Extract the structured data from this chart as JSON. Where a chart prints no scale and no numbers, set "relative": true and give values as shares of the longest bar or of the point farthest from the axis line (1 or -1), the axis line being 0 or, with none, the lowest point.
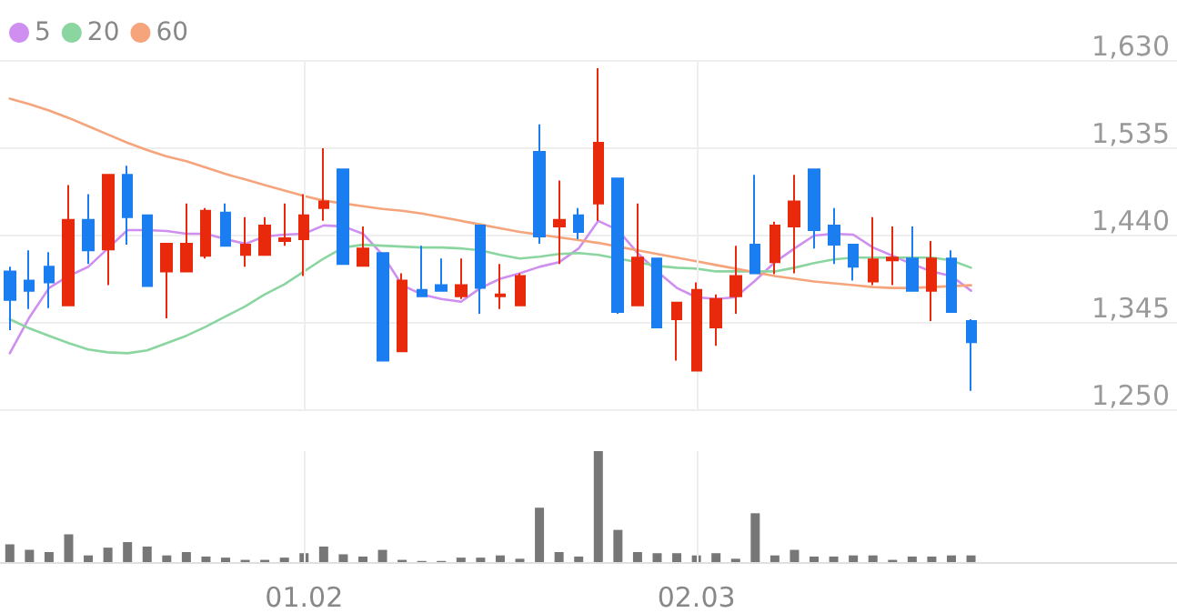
{
  "chart_data": [
    {
      "type": "candlestick",
      "categories": [
        null,
        null,
        null,
        null,
        null,
        null,
        null,
        null,
        null,
        null,
        null,
        null,
        null,
        null,
        null,
        "01.02",
        null,
        null,
        null,
        null,
        null,
        null,
        null,
        null,
        null,
        null,
        null,
        null,
        null,
        null,
        null,
        null,
        null,
        null,
        null,
        "02.03",
        null,
        null,
        null,
        null,
        null,
        null,
        null,
        null,
        null,
        null,
        null,
        null,
        null,
        null,
        null,
        null,
        null,
        null,
        null,
        null,
        null,
        null,
        null,
        null
      ],
      "ohlc": [
        [
          1400,
          1405,
          1336,
          1369
        ],
        [
          1390,
          1423,
          1359,
          1379
        ],
        [
          1405,
          1421,
          1360,
          1388
        ],
        [
          1363,
          1494,
          1363,
          1456
        ],
        [
          1456,
          1484,
          1408,
          1423
        ],
        [
          1424,
          1505,
          1385,
          1505
        ],
        [
          1505,
          1515,
          1429,
          1459
        ],
        [
          1461,
          1461,
          1384,
          1384
        ],
        [
          1400,
          1430,
          1349,
          1430
        ],
        [
          1400,
          1474,
          1400,
          1430
        ],
        [
          1417,
          1469,
          1414,
          1466
        ],
        [
          1464,
          1474,
          1428,
          1428
        ],
        [
          1418,
          1459,
          1405,
          1429
        ],
        [
          1418,
          1459,
          1418,
          1450
        ],
        [
          1433,
          1474,
          1428,
          1436
        ],
        [
          1435,
          1484,
          1395,
          1461
        ],
        [
          1469,
          1534,
          1455,
          1476
        ],
        [
          1511,
          1511,
          1408,
          1408
        ],
        [
          1406,
          1449,
          1405,
          1425
        ],
        [
          1420,
          1420,
          1303,
          1303
        ],
        [
          1313,
          1398,
          1313,
          1390
        ],
        [
          1380,
          1428,
          1372,
          1373
        ],
        [
          1385,
          1414,
          1379,
          1379
        ],
        [
          1373,
          1414,
          1370,
          1385
        ],
        [
          1450,
          1450,
          1354,
          1382
        ],
        [
          1373,
          1408,
          1359,
          1375
        ],
        [
          1363,
          1398,
          1363,
          1395
        ],
        [
          1530,
          1560,
          1430,
          1438
        ],
        [
          1449,
          1499,
          1408,
          1456
        ],
        [
          1461,
          1469,
          1435,
          1443
        ],
        [
          1474,
          1621,
          1455,
          1540
        ],
        [
          1501,
          1501,
          1354,
          1356
        ],
        [
          1363,
          1474,
          1363,
          1415
        ],
        [
          1414,
          1414,
          1339,
          1339
        ],
        [
          1348,
          1367,
          1303,
          1366
        ],
        [
          1292,
          1388,
          1292,
          1380
        ],
        [
          1339,
          1375,
          1319,
          1370
        ],
        [
          1373,
          1428,
          1354,
          1395
        ],
        [
          1429,
          1505,
          1398,
          1398
        ],
        [
          1410,
          1454,
          1397,
          1450
        ],
        [
          1449,
          1505,
          1398,
          1476
        ],
        [
          1511,
          1511,
          1425,
          1445
        ],
        [
          1450,
          1469,
          1408,
          1429
        ],
        [
          1429,
          1429,
          1390,
          1405
        ],
        [
          1389,
          1459,
          1385,
          1413
        ],
        [
          1412,
          1449,
          1385,
          1415
        ],
        [
          1414,
          1449,
          1379,
          1379
        ],
        [
          1379,
          1433,
          1346,
          1414
        ],
        [
          1414,
          1423,
          1356,
          1356
        ],
        [
          1346,
          1348,
          1270,
          1323
        ],
        null,
        null,
        null,
        null,
        null,
        null,
        null,
        null,
        null,
        null
      ],
      "colors": [
        "#1a7ef0",
        "#1a7ef0",
        "#1a7ef0",
        "#e8290b",
        "#1a7ef0",
        "#e8290b",
        "#1a7ef0",
        "#1a7ef0",
        "#e8290b",
        "#e8290b",
        "#e8290b",
        "#1a7ef0",
        "#e8290b",
        "#e8290b",
        "#e8290b",
        "#e8290b",
        "#e8290b",
        "#1a7ef0",
        "#e8290b",
        "#1a7ef0",
        "#e8290b",
        "#1a7ef0",
        "#1a7ef0",
        "#e8290b",
        "#1a7ef0",
        "#e8290b",
        "#e8290b",
        "#1a7ef0",
        "#e8290b",
        "#1a7ef0",
        "#e8290b",
        "#1a7ef0",
        "#e8290b",
        "#1a7ef0",
        "#e8290b",
        "#e8290b",
        "#e8290b",
        "#e8290b",
        "#1a7ef0",
        "#e8290b",
        "#e8290b",
        "#1a7ef0",
        "#1a7ef0",
        "#1a7ef0",
        "#e8290b",
        "#e8290b",
        "#1a7ef0",
        "#e8290b",
        "#1a7ef0",
        "#1a7ef0",
        null,
        null,
        null,
        null,
        null,
        null,
        null,
        null,
        null,
        null
      ],
      "series": [
        {
          "name": "5",
          "type": "line",
          "color": "#cf8ff0",
          "values": [
            1311,
            1350,
            1382,
            1395,
            1405,
            1425,
            1445,
            1445,
            1444,
            1441,
            1441,
            1435,
            1430,
            1438,
            1440,
            1441,
            1450,
            1449,
            1441,
            1418,
            1385,
            1375,
            1370,
            1367,
            1382,
            1392,
            1398,
            1405,
            1410,
            1425,
            1455,
            1445,
            1420,
            1400,
            1382,
            1372,
            1370,
            1372,
            1390,
            1410,
            1425,
            1439,
            1441,
            1440,
            1426,
            1417,
            1408,
            1400,
            1395,
            1379,
            null,
            null,
            null,
            null,
            null,
            null,
            null,
            null,
            null,
            null
          ]
        },
        {
          "name": "20",
          "type": "line",
          "color": "#8bd6a0",
          "values": [
            1348,
            1338,
            1330,
            1322,
            1315,
            1312,
            1311,
            1314,
            1322,
            1330,
            1340,
            1351,
            1362,
            1375,
            1386,
            1400,
            1414,
            1426,
            1429,
            1428,
            1427,
            1426,
            1426,
            1425,
            1423,
            1418,
            1414,
            1416,
            1419,
            1420,
            1418,
            1414,
            1410,
            1406,
            1404,
            1403,
            1400,
            1400,
            1400,
            1400,
            1404,
            1409,
            1413,
            1415,
            1415,
            1415,
            1415,
            1415,
            1412,
            1404,
            null,
            null,
            null,
            null,
            null,
            null,
            null,
            null,
            null,
            null
          ]
        },
        {
          "name": "60",
          "type": "line",
          "color": "#f5a47c",
          "values": [
            1588,
            1582,
            1575,
            1567,
            1558,
            1549,
            1540,
            1532,
            1525,
            1520,
            1513,
            1506,
            1500,
            1494,
            1488,
            1482,
            1477,
            1474,
            1471,
            1468,
            1466,
            1463,
            1459,
            1455,
            1451,
            1447,
            1443,
            1440,
            1437,
            1434,
            1431,
            1427,
            1423,
            1419,
            1415,
            1411,
            1407,
            1403,
            1399,
            1395,
            1392,
            1389,
            1387,
            1385,
            1383,
            1382,
            1382,
            1383,
            1384,
            1385,
            null,
            null,
            null,
            null,
            null,
            null,
            null,
            null,
            null,
            null
          ]
        }
      ],
      "ylim": [
        1250,
        1630
      ],
      "yticks": [
        {
          "value": 1250,
          "label": "1,250"
        },
        {
          "value": 1345,
          "label": "1,345"
        },
        {
          "value": 1440,
          "label": "1,440"
        },
        {
          "value": 1535,
          "label": "1,535"
        },
        {
          "value": 1630,
          "label": "1,630"
        }
      ],
      "grid": true,
      "legend": "top left",
      "marker": "none",
      "line_style": "solid",
      "tick_labels": "y"
    },
    {
      "type": "bar",
      "relative": true,
      "color": "#777777",
      "grid": true,
      "categories": [
        null,
        null,
        null,
        null,
        null,
        null,
        null,
        null,
        null,
        null,
        null,
        null,
        null,
        null,
        null,
        "01.02",
        null,
        null,
        null,
        null,
        null,
        null,
        null,
        null,
        null,
        null,
        null,
        null,
        null,
        null,
        null,
        null,
        null,
        null,
        null,
        "02.03",
        null,
        null,
        null,
        null,
        null,
        null,
        null,
        null,
        null,
        null,
        null,
        null,
        null,
        null,
        null,
        null,
        null,
        null,
        null,
        null,
        null,
        null,
        null,
        null
      ],
      "values": [
        0.16,
        0.11,
        0.09,
        0.25,
        0.06,
        0.13,
        0.18,
        0.14,
        0.06,
        0.09,
        0.05,
        0.04,
        0.02,
        0.02,
        0.04,
        0.08,
        0.14,
        0.07,
        0.05,
        0.11,
        0.02,
        0.01,
        0.01,
        0.04,
        0.04,
        0.06,
        0.03,
        0.49,
        0.09,
        0.05,
        1,
        0.29,
        0.09,
        0.08,
        0.08,
        0.06,
        0.08,
        0.03,
        0.44,
        0.06,
        0.11,
        0.05,
        0.05,
        0.06,
        0.06,
        0.02,
        0.05,
        0.05,
        0.06,
        0.06,
        null,
        null,
        null,
        null,
        null,
        null,
        null,
        null,
        null,
        null
      ]
    }
  ]
}
